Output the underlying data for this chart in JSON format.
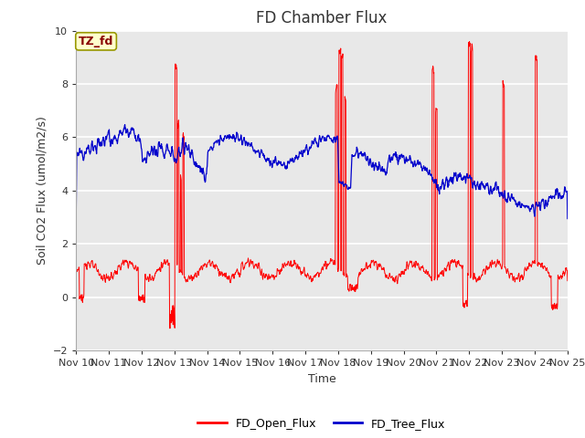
{
  "title": "FD Chamber Flux",
  "xlabel": "Time",
  "ylabel": "Soil CO2 Flux (umol/m2/s)",
  "ylim": [
    -2,
    10
  ],
  "yticks": [
    -2,
    0,
    2,
    4,
    6,
    8,
    10
  ],
  "open_flux_color": "#ff0000",
  "tree_flux_color": "#0000cc",
  "bg_color": "#e8e8e8",
  "fig_bg_color": "#ffffff",
  "label_box_text": "TZ_fd",
  "label_box_facecolor": "#ffffcc",
  "label_box_edgecolor": "#999900",
  "label_text_color": "#880000",
  "legend_open": "FD_Open_Flux",
  "legend_tree": "FD_Tree_Flux",
  "n_days": 15,
  "points_per_day": 96,
  "start_day": 10
}
